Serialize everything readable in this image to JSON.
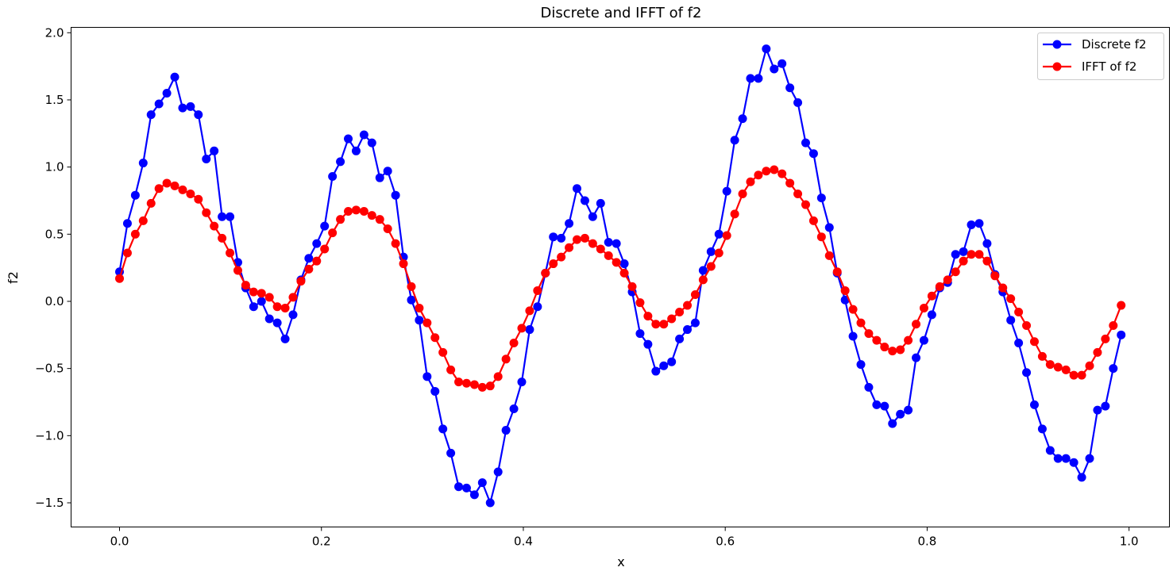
{
  "chart_data": {
    "type": "line",
    "title": "Discrete and IFFT of f2",
    "xlabel": "x",
    "ylabel": "f2",
    "xlim": [
      -0.048,
      1.04
    ],
    "ylim": [
      -1.68,
      2.04
    ],
    "xticks": [
      0.0,
      0.2,
      0.4,
      0.6,
      0.8,
      1.0
    ],
    "xtick_labels": [
      "0.0",
      "0.2",
      "0.4",
      "0.6",
      "0.8",
      "1.0"
    ],
    "yticks": [
      -1.5,
      -1.0,
      -0.5,
      0.0,
      0.5,
      1.0,
      1.5,
      2.0
    ],
    "ytick_labels": [
      "−1.5",
      "−1.0",
      "−0.5",
      "0.0",
      "0.5",
      "1.0",
      "1.5",
      "2.0"
    ],
    "legend_position": "top-right",
    "grid": false,
    "x_start": 0.0,
    "x_step": 0.0078125,
    "series": [
      {
        "name": "Discrete f2",
        "color": "#0000ff",
        "marker": "circle",
        "values": [
          0.22,
          0.58,
          0.79,
          1.03,
          1.39,
          1.47,
          1.55,
          1.67,
          1.44,
          1.45,
          1.39,
          1.06,
          1.12,
          0.63,
          0.63,
          0.29,
          0.1,
          -0.04,
          0.0,
          -0.13,
          -0.16,
          -0.28,
          -0.1,
          0.16,
          0.32,
          0.43,
          0.56,
          0.93,
          1.04,
          1.21,
          1.12,
          1.24,
          1.18,
          0.92,
          0.97,
          0.79,
          0.33,
          0.01,
          -0.14,
          -0.56,
          -0.67,
          -0.95,
          -1.13,
          -1.38,
          -1.39,
          -1.44,
          -1.35,
          -1.5,
          -1.27,
          -0.96,
          -0.8,
          -0.6,
          -0.21,
          -0.04,
          0.21,
          0.48,
          0.47,
          0.58,
          0.84,
          0.75,
          0.63,
          0.73,
          0.44,
          0.43,
          0.28,
          0.07,
          -0.24,
          -0.32,
          -0.52,
          -0.48,
          -0.45,
          -0.28,
          -0.21,
          -0.16,
          0.23,
          0.37,
          0.5,
          0.82,
          1.2,
          1.36,
          1.66,
          1.66,
          1.88,
          1.73,
          1.77,
          1.59,
          1.48,
          1.18,
          1.1,
          0.77,
          0.55,
          0.21,
          0.01,
          -0.26,
          -0.47,
          -0.64,
          -0.77,
          -0.78,
          -0.91,
          -0.84,
          -0.81,
          -0.42,
          -0.29,
          -0.1,
          0.1,
          0.14,
          0.35,
          0.37,
          0.57,
          0.58,
          0.43,
          0.2,
          0.07,
          -0.14,
          -0.31,
          -0.53,
          -0.77,
          -0.95,
          -1.11,
          -1.17,
          -1.17,
          -1.2,
          -1.31,
          -1.17,
          -0.81,
          -0.78,
          -0.5,
          -0.25
        ]
      },
      {
        "name": "IFFT of f2",
        "color": "#ff0000",
        "marker": "circle",
        "values": [
          0.17,
          0.36,
          0.5,
          0.6,
          0.73,
          0.84,
          0.88,
          0.86,
          0.83,
          0.8,
          0.76,
          0.66,
          0.56,
          0.47,
          0.36,
          0.23,
          0.12,
          0.07,
          0.06,
          0.03,
          -0.04,
          -0.05,
          0.03,
          0.15,
          0.24,
          0.3,
          0.39,
          0.51,
          0.61,
          0.67,
          0.68,
          0.67,
          0.64,
          0.61,
          0.54,
          0.43,
          0.28,
          0.11,
          -0.05,
          -0.16,
          -0.27,
          -0.38,
          -0.51,
          -0.6,
          -0.61,
          -0.62,
          -0.64,
          -0.63,
          -0.56,
          -0.43,
          -0.31,
          -0.2,
          -0.07,
          0.08,
          0.21,
          0.28,
          0.33,
          0.4,
          0.46,
          0.47,
          0.43,
          0.39,
          0.34,
          0.29,
          0.21,
          0.11,
          -0.01,
          -0.11,
          -0.17,
          -0.17,
          -0.13,
          -0.08,
          -0.03,
          0.05,
          0.16,
          0.26,
          0.36,
          0.49,
          0.65,
          0.8,
          0.89,
          0.94,
          0.97,
          0.98,
          0.95,
          0.88,
          0.8,
          0.72,
          0.6,
          0.48,
          0.34,
          0.22,
          0.08,
          -0.06,
          -0.16,
          -0.24,
          -0.29,
          -0.34,
          -0.37,
          -0.36,
          -0.29,
          -0.17,
          -0.05,
          0.04,
          0.11,
          0.16,
          0.22,
          0.3,
          0.35,
          0.35,
          0.3,
          0.19,
          0.1,
          0.02,
          -0.08,
          -0.18,
          -0.3,
          -0.41,
          -0.47,
          -0.49,
          -0.51,
          -0.55,
          -0.55,
          -0.48,
          -0.38,
          -0.28,
          -0.18,
          -0.03
        ]
      }
    ]
  }
}
